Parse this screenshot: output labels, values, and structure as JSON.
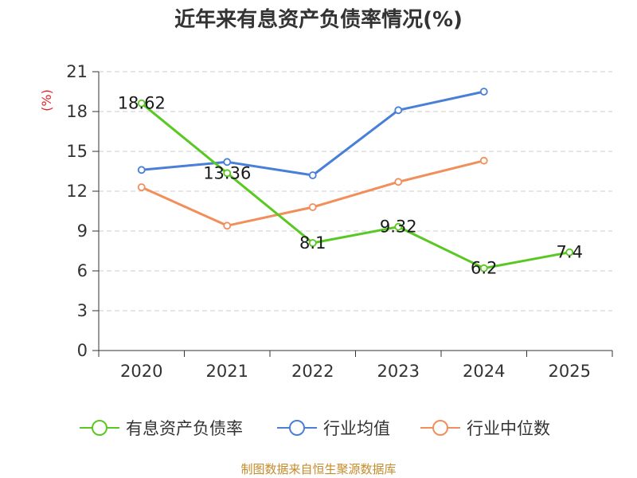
{
  "colors": {
    "series_0": "#5ac822",
    "series_1": "#4a7fd8",
    "series_2": "#f28e5a",
    "unit": "#e0262a",
    "source": "#c58b2b"
  },
  "chart_data": {
    "type": "line",
    "title": "近年来有息资产负债率情况(%)",
    "ylabel": "(%)",
    "ylim": [
      0,
      21
    ],
    "yticks": [
      "0",
      "3",
      "6",
      "9",
      "12",
      "15",
      "18",
      "21"
    ],
    "grid": true,
    "legend_position": "bottom",
    "categories": [
      "2020",
      "2021",
      "2022",
      "2023",
      "2024",
      "2025"
    ],
    "series": [
      {
        "name": "有息资产负债率",
        "values": [
          18.62,
          13.36,
          8.1,
          9.32,
          6.2,
          7.4
        ],
        "labels": [
          "18.62",
          "13.36",
          "8.1",
          "9.32",
          "6.2",
          "7.4"
        ]
      },
      {
        "name": "行业均值",
        "values": [
          13.6,
          14.2,
          13.2,
          18.1,
          19.5,
          null
        ]
      },
      {
        "name": "行业中位数",
        "values": [
          12.3,
          9.4,
          10.8,
          12.7,
          14.3,
          null
        ]
      }
    ],
    "source": "制图数据来自恒生聚源数据库"
  }
}
